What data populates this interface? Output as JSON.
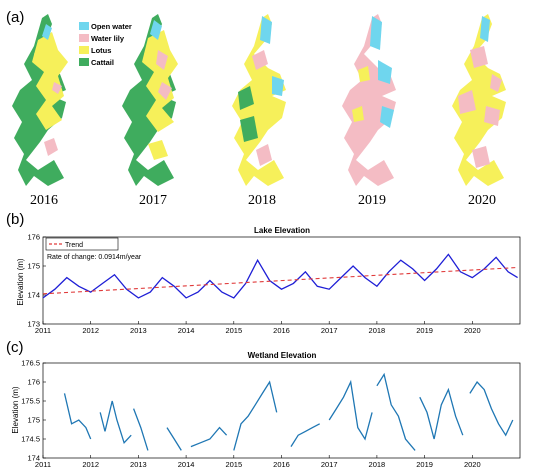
{
  "panel_a": {
    "letter": "(a)",
    "years": [
      "2016",
      "2017",
      "2018",
      "2019",
      "2020"
    ],
    "legend": [
      {
        "label": "Open water",
        "color": "#6fd6ee"
      },
      {
        "label": "Water lily",
        "color": "#f4bcc4"
      },
      {
        "label": "Lotus",
        "color": "#f6f05a"
      },
      {
        "label": "Cattail",
        "color": "#3fac5e"
      }
    ]
  },
  "panel_b": {
    "letter": "(b)"
  },
  "panel_c": {
    "letter": "(c)"
  },
  "chart_data": [
    {
      "type": "line",
      "title": "Lake Elevation",
      "xlabel": "",
      "ylabel": "Elevation (m)",
      "xlim": [
        2011,
        2021
      ],
      "ylim": [
        173,
        176
      ],
      "xticks": [
        "2011",
        "2012",
        "2013",
        "2014",
        "2015",
        "2016",
        "2017",
        "2018",
        "2019",
        "2020"
      ],
      "yticks": [
        "173",
        "174",
        "175",
        "176"
      ],
      "legend": [
        "Trend"
      ],
      "legend_position": "top-left",
      "annotation": "Rate of change: 0.0914m/year",
      "series": [
        {
          "name": "",
          "color": "#1f1fd6",
          "x": [
            2011.0,
            2011.25,
            2011.5,
            2011.75,
            2012.0,
            2012.25,
            2012.5,
            2012.75,
            2013.0,
            2013.25,
            2013.5,
            2013.75,
            2014.0,
            2014.25,
            2014.5,
            2014.75,
            2015.0,
            2015.25,
            2015.5,
            2015.75,
            2016.0,
            2016.25,
            2016.5,
            2016.75,
            2017.0,
            2017.25,
            2017.5,
            2017.75,
            2018.0,
            2018.25,
            2018.5,
            2018.75,
            2019.0,
            2019.25,
            2019.5,
            2019.75,
            2020.0,
            2020.25,
            2020.5,
            2020.75,
            2020.95
          ],
          "y": [
            173.9,
            174.2,
            174.6,
            174.3,
            174.1,
            174.4,
            174.7,
            174.2,
            173.9,
            174.1,
            174.6,
            174.3,
            173.9,
            174.1,
            174.5,
            174.1,
            173.9,
            174.4,
            175.2,
            174.5,
            174.2,
            174.4,
            174.8,
            174.3,
            174.2,
            174.6,
            175.0,
            174.6,
            174.3,
            174.8,
            175.2,
            174.9,
            174.5,
            174.9,
            175.4,
            174.8,
            174.6,
            174.9,
            175.3,
            174.8,
            174.6
          ]
        },
        {
          "name": "Trend",
          "color": "#e03a3a",
          "style": "dashed",
          "x": [
            2011.0,
            2020.95
          ],
          "y": [
            174.04,
            174.95
          ]
        }
      ]
    },
    {
      "type": "line",
      "title": "Wetland Elevation",
      "xlabel": "",
      "ylabel": "Elevation (m)",
      "xlim": [
        2011,
        2021
      ],
      "ylim": [
        174,
        176.5
      ],
      "xticks": [
        "2011",
        "2012",
        "2013",
        "2014",
        "2015",
        "2016",
        "2017",
        "2018",
        "2019",
        "2020"
      ],
      "yticks": [
        "174",
        "174.5",
        "175",
        "175.5",
        "176",
        "176.5"
      ],
      "series": [
        {
          "name": "",
          "color": "#1f77b4",
          "segments": [
            {
              "x": [
                2011.45,
                2011.6,
                2011.75,
                2011.9,
                2012.0
              ],
              "y": [
                175.7,
                174.9,
                175.0,
                174.8,
                174.5
              ]
            },
            {
              "x": [
                2012.2,
                2012.3,
                2012.45,
                2012.55,
                2012.7,
                2012.85
              ],
              "y": [
                175.2,
                174.7,
                175.5,
                175.0,
                174.4,
                174.6
              ]
            },
            {
              "x": [
                2012.9,
                2013.05,
                2013.2
              ],
              "y": [
                175.3,
                174.8,
                174.2
              ]
            },
            {
              "x": [
                2013.6,
                2013.75,
                2013.9
              ],
              "y": [
                174.8,
                174.5,
                174.2
              ]
            },
            {
              "x": [
                2014.1,
                2014.3,
                2014.5,
                2014.7,
                2014.85
              ],
              "y": [
                174.3,
                174.4,
                174.5,
                174.8,
                174.6
              ]
            },
            {
              "x": [
                2015.0,
                2015.15,
                2015.3,
                2015.45,
                2015.6,
                2015.75,
                2015.9
              ],
              "y": [
                174.2,
                174.9,
                175.1,
                175.4,
                175.7,
                176.0,
                175.2
              ]
            },
            {
              "x": [
                2016.2,
                2016.35,
                2016.5,
                2016.65,
                2016.8
              ],
              "y": [
                174.3,
                174.6,
                174.7,
                174.8,
                174.9
              ]
            },
            {
              "x": [
                2017.0,
                2017.15,
                2017.3,
                2017.45,
                2017.6,
                2017.75,
                2017.9
              ],
              "y": [
                175.0,
                175.3,
                175.6,
                176.0,
                174.8,
                174.5,
                175.2
              ]
            },
            {
              "x": [
                2018.0,
                2018.15,
                2018.3,
                2018.45,
                2018.6,
                2018.8
              ],
              "y": [
                175.9,
                176.2,
                175.4,
                175.1,
                174.5,
                174.2
              ]
            },
            {
              "x": [
                2018.9,
                2019.05,
                2019.2,
                2019.35,
                2019.5,
                2019.65,
                2019.8
              ],
              "y": [
                175.6,
                175.2,
                174.5,
                175.4,
                175.8,
                175.1,
                174.6
              ]
            },
            {
              "x": [
                2019.95,
                2020.1,
                2020.25,
                2020.4,
                2020.55,
                2020.7,
                2020.85
              ],
              "y": [
                175.7,
                176.0,
                175.8,
                175.3,
                174.9,
                174.6,
                175.0
              ]
            }
          ]
        }
      ]
    }
  ]
}
